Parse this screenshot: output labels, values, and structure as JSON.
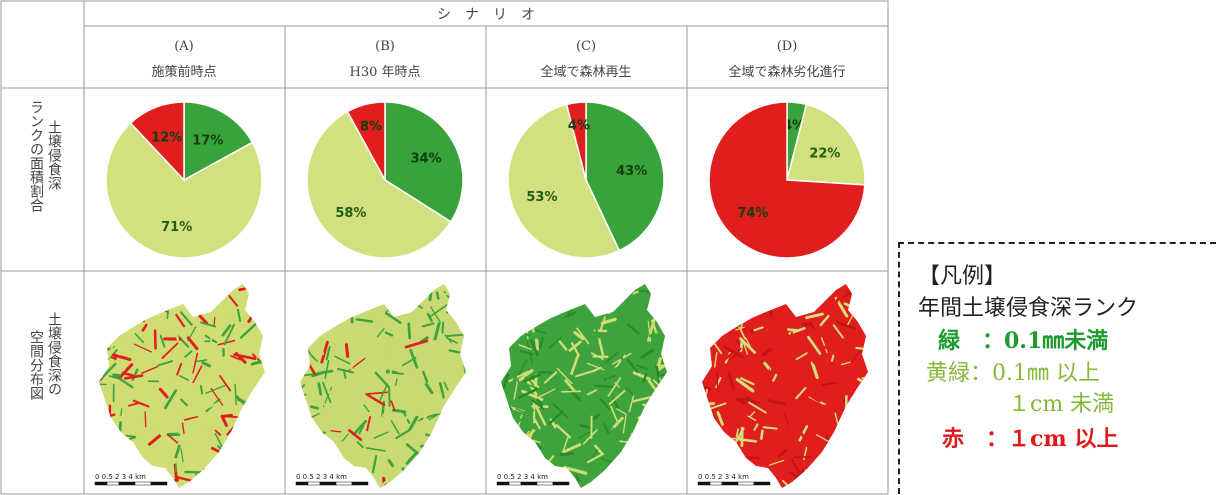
{
  "header": {
    "scenario_label": "シ　ナ　リ　オ"
  },
  "columns": [
    {
      "id": "(A)",
      "subtitle": "施策前時点"
    },
    {
      "id": "(B)",
      "subtitle": "H30 年時点"
    },
    {
      "id": "(C)",
      "subtitle": "全域で森林再生"
    },
    {
      "id": "(D)",
      "subtitle": "全域で森林劣化進行"
    }
  ],
  "row_labels": {
    "pie_row": [
      "ランクの面積割合",
      "土壌侵食深"
    ],
    "map_row": [
      "空間分布図",
      "土壌侵食深の"
    ]
  },
  "colors": {
    "green": "#38a33a",
    "yellowgreen": "#d3e07f",
    "red": "#e01e1e"
  },
  "chart_data": [
    {
      "type": "pie",
      "title": "施策前時点",
      "labels": [
        "緑",
        "黄緑",
        "赤"
      ],
      "values": [
        17,
        71,
        12
      ],
      "value_labels": [
        "17%",
        "71%",
        "12%"
      ]
    },
    {
      "type": "pie",
      "title": "H30 年時点",
      "labels": [
        "緑",
        "黄緑",
        "赤"
      ],
      "values": [
        34,
        58,
        8
      ],
      "value_labels": [
        "34%",
        "58%",
        "8%"
      ]
    },
    {
      "type": "pie",
      "title": "全域で森林再生",
      "labels": [
        "緑",
        "黄緑",
        "赤"
      ],
      "values": [
        43,
        53,
        4
      ],
      "value_labels": [
        "43%",
        "53%",
        "4%"
      ]
    },
    {
      "type": "pie",
      "title": "全域で森林劣化進行",
      "labels": [
        "緑",
        "黄緑",
        "赤"
      ],
      "values": [
        4,
        22,
        74
      ],
      "value_labels": [
        "4%",
        "22%",
        "74%"
      ]
    }
  ],
  "maps": [
    {
      "dominant": "yellowgreen",
      "scale_label": "0 0.5 2 3 4 km"
    },
    {
      "dominant": "yellowgreen-green",
      "scale_label": "0 0.5 2 3 4 km"
    },
    {
      "dominant": "green",
      "scale_label": "0 0.5 2 3 4 km"
    },
    {
      "dominant": "red",
      "scale_label": "0 0.5 2 3 4 km"
    }
  ],
  "legend": {
    "title": "【凡例】",
    "subtitle": "年間土壌侵食深ランク",
    "green_label": "緑　：0.1㎜未満",
    "yellowgreen_label_1": "黄緑：0.1㎜ 以上",
    "yellowgreen_label_2": "１cm 未満",
    "red_label": "赤　：１cm 以上"
  }
}
